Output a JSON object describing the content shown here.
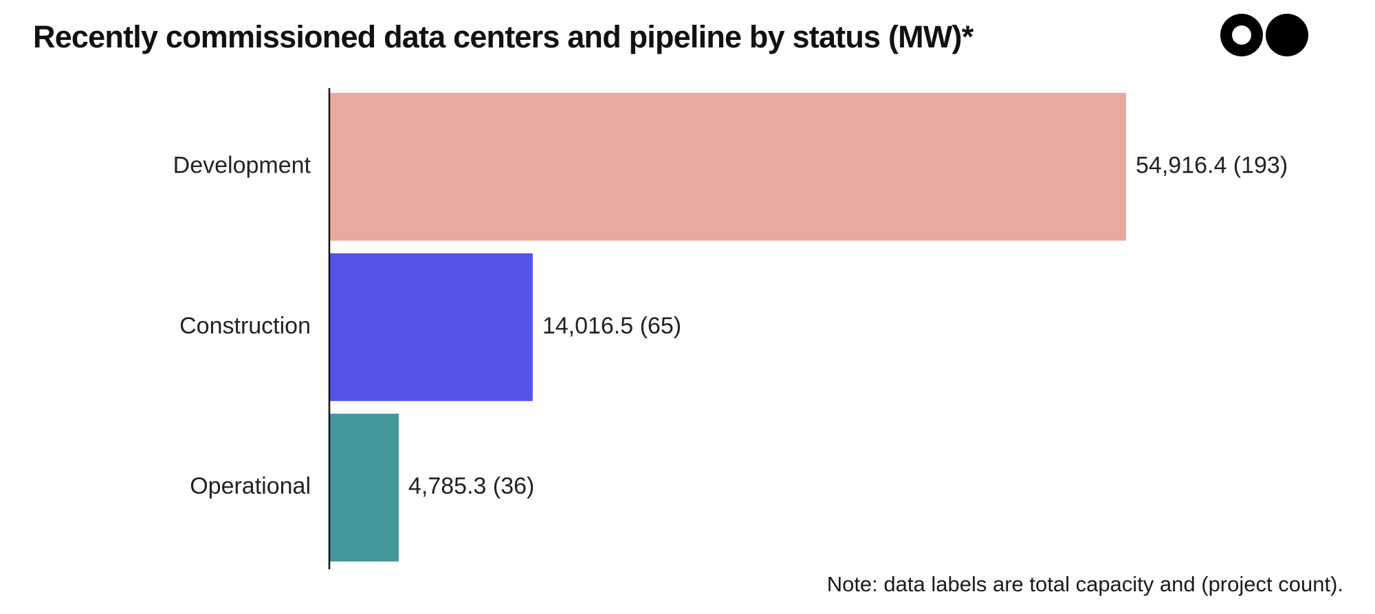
{
  "chart_data": {
    "type": "bar",
    "orientation": "horizontal",
    "title": "Recently commissioned data centers and pipeline by status (MW)*",
    "categories": [
      "Development",
      "Construction",
      "Operational"
    ],
    "values": [
      54916.4,
      14016.5,
      4785.3
    ],
    "project_counts": [
      193,
      65,
      36
    ],
    "data_labels": [
      "54,916.4 (193)",
      "14,016.5 (65)",
      "4,785.3 (36)"
    ],
    "colors": [
      "#e8aaa0",
      "#5552e8",
      "#44979b"
    ],
    "xlim": [
      0,
      60000
    ],
    "grid": false,
    "legend": "none",
    "note": "Note: data labels are total capacity and (project count)."
  },
  "logo": {
    "name": "two-circles-logo"
  }
}
